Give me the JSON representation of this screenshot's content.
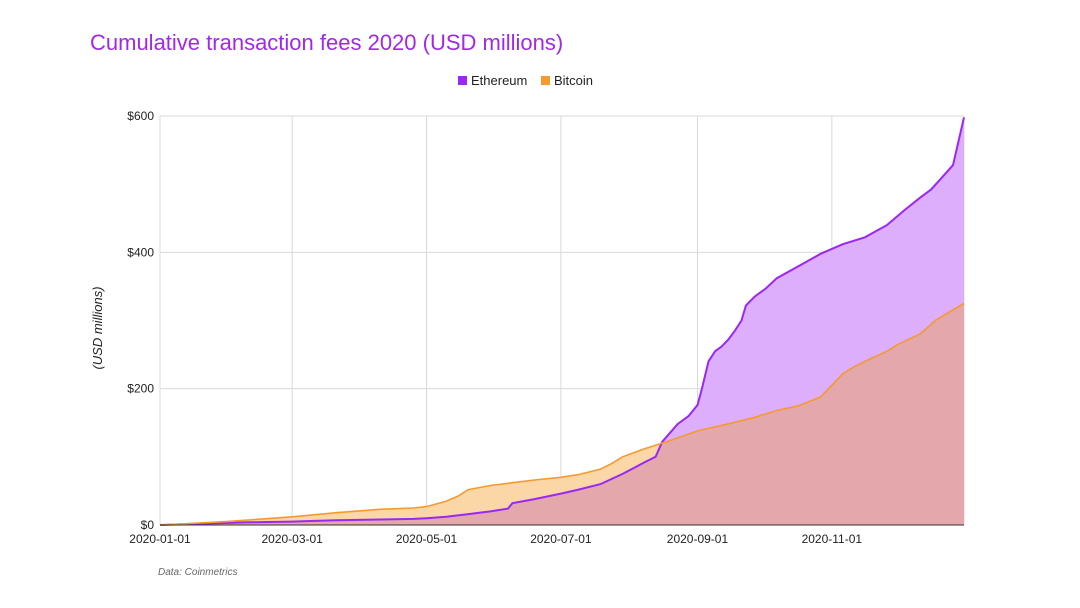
{
  "chart_data": {
    "type": "area",
    "title": "Cumulative transaction fees 2020 (USD millions)",
    "ylabel": "(USD millions)",
    "xlabel": "",
    "source": "Data: Coinmetrics",
    "x_unit": "day_of_year_2020",
    "xlim": [
      0,
      365
    ],
    "ylim": [
      0,
      600
    ],
    "y_ticks": [
      0,
      200,
      400,
      600
    ],
    "y_tick_labels": [
      "$0",
      "$200",
      "$400",
      "$600"
    ],
    "x_ticks": [
      0,
      60,
      121,
      182,
      244,
      305
    ],
    "x_tick_labels": [
      "2020-01-01",
      "2020-03-01",
      "2020-05-01",
      "2020-07-01",
      "2020-09-01",
      "2020-11-01"
    ],
    "grid": true,
    "legend_position": "top-center",
    "colors": {
      "ethereum_line": "#9b27f5",
      "ethereum_fill": "#dcaefc",
      "bitcoin_line": "#f59a2f",
      "bitcoin_fill": "#fbd6a6",
      "overlap_fill": "#e4a7ab",
      "title": "#a128ea",
      "text": "#222222",
      "source": "#666666"
    },
    "series": [
      {
        "name": "Ethereum",
        "points": [
          [
            0,
            0
          ],
          [
            20,
            2
          ],
          [
            40,
            4
          ],
          [
            60,
            5
          ],
          [
            70,
            6
          ],
          [
            80,
            7
          ],
          [
            100,
            8
          ],
          [
            115,
            9
          ],
          [
            121,
            10
          ],
          [
            130,
            12
          ],
          [
            140,
            16
          ],
          [
            150,
            20
          ],
          [
            158,
            24
          ],
          [
            160,
            32
          ],
          [
            170,
            38
          ],
          [
            182,
            46
          ],
          [
            190,
            52
          ],
          [
            200,
            60
          ],
          [
            210,
            75
          ],
          [
            220,
            92
          ],
          [
            225,
            100
          ],
          [
            228,
            122
          ],
          [
            235,
            148
          ],
          [
            240,
            160
          ],
          [
            244,
            176
          ],
          [
            246,
            200
          ],
          [
            249,
            240
          ],
          [
            252,
            255
          ],
          [
            255,
            262
          ],
          [
            258,
            272
          ],
          [
            261,
            285
          ],
          [
            264,
            300
          ],
          [
            266,
            322
          ],
          [
            270,
            335
          ],
          [
            275,
            347
          ],
          [
            280,
            362
          ],
          [
            290,
            380
          ],
          [
            300,
            398
          ],
          [
            310,
            412
          ],
          [
            320,
            422
          ],
          [
            330,
            440
          ],
          [
            338,
            462
          ],
          [
            345,
            480
          ],
          [
            350,
            492
          ],
          [
            355,
            510
          ],
          [
            360,
            528
          ],
          [
            365,
            598
          ]
        ]
      },
      {
        "name": "Bitcoin",
        "points": [
          [
            0,
            0
          ],
          [
            30,
            5
          ],
          [
            60,
            12
          ],
          [
            80,
            18
          ],
          [
            100,
            23
          ],
          [
            115,
            25
          ],
          [
            121,
            27
          ],
          [
            130,
            35
          ],
          [
            135,
            42
          ],
          [
            140,
            52
          ],
          [
            150,
            58
          ],
          [
            160,
            62
          ],
          [
            170,
            66
          ],
          [
            182,
            70
          ],
          [
            190,
            74
          ],
          [
            200,
            82
          ],
          [
            205,
            90
          ],
          [
            210,
            100
          ],
          [
            220,
            112
          ],
          [
            230,
            122
          ],
          [
            244,
            138
          ],
          [
            260,
            150
          ],
          [
            270,
            158
          ],
          [
            280,
            168
          ],
          [
            290,
            175
          ],
          [
            300,
            188
          ],
          [
            305,
            205
          ],
          [
            310,
            222
          ],
          [
            315,
            232
          ],
          [
            320,
            240
          ],
          [
            330,
            255
          ],
          [
            335,
            265
          ],
          [
            345,
            280
          ],
          [
            352,
            300
          ],
          [
            358,
            312
          ],
          [
            365,
            325
          ]
        ]
      }
    ]
  }
}
